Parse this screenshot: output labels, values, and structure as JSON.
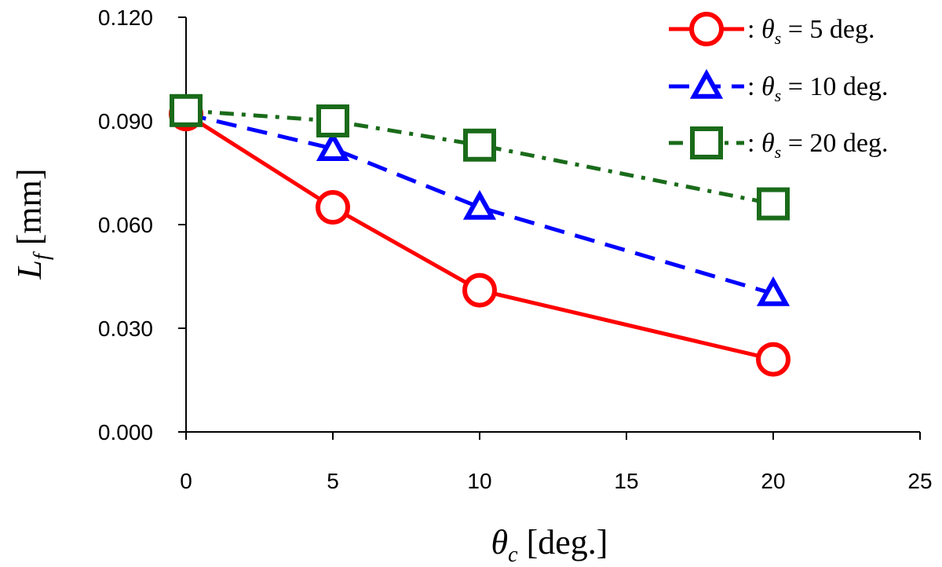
{
  "chart_data": {
    "type": "line",
    "title": "",
    "xlabel": {
      "symbol": "θ",
      "sub": "c",
      "unit": " [deg.]"
    },
    "ylabel": {
      "symbol": "L",
      "sub": "f",
      "unit": " [mm]"
    },
    "xlim": [
      0,
      25
    ],
    "ylim": [
      0,
      0.12
    ],
    "xticks": [
      0,
      5,
      10,
      15,
      20,
      25
    ],
    "xtick_labels": [
      "0",
      "5",
      "10",
      "15",
      "20",
      "25"
    ],
    "yticks": [
      0,
      0.03,
      0.06,
      0.09,
      0.12
    ],
    "ytick_labels": [
      "0.000",
      "0.030",
      "0.060",
      "0.090",
      "0.120"
    ],
    "grid": false,
    "legend_position": "top-right",
    "x": [
      0,
      5,
      10,
      20
    ],
    "series": [
      {
        "label": {
          "prefix": ": ",
          "symbol": "θ",
          "sub": "s",
          "suffix": " = 5 deg."
        },
        "values": [
          0.092,
          0.065,
          0.041,
          0.021
        ],
        "color": "#ff0000",
        "marker": "circle",
        "line_style": "solid"
      },
      {
        "label": {
          "prefix": ": ",
          "symbol": "θ",
          "sub": "s",
          "suffix": " = 10 deg."
        },
        "values": [
          0.092,
          0.082,
          0.065,
          0.04
        ],
        "color": "#0000ff",
        "marker": "triangle",
        "line_style": "dashed"
      },
      {
        "label": {
          "prefix": ": ",
          "symbol": "θ",
          "sub": "s",
          "suffix": " = 20 deg."
        },
        "values": [
          0.093,
          0.09,
          0.083,
          0.066
        ],
        "color": "#1a6b1a",
        "marker": "square",
        "line_style": "dashdot"
      }
    ]
  }
}
